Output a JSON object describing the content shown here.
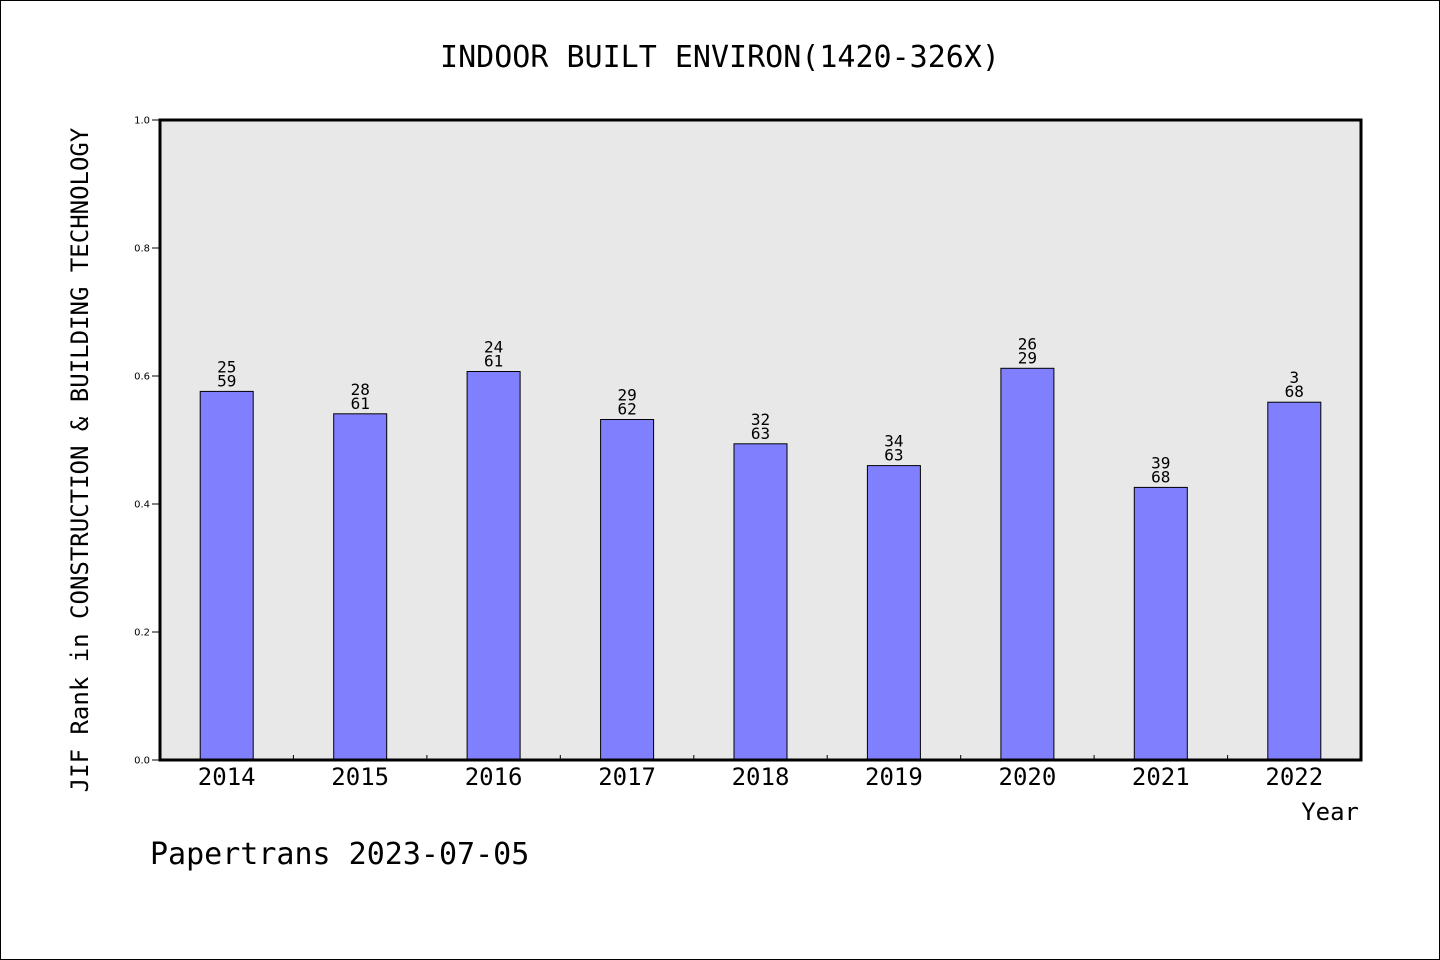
{
  "chart_data": {
    "type": "bar",
    "title": "INDOOR BUILT ENVIRON(1420-326X)",
    "xlabel": "Year",
    "ylabel": "JIF Rank in CONSTRUCTION & BUILDING TECHNOLOGY",
    "ylim": [
      0.0,
      1.0
    ],
    "yticks": [
      "0.0",
      "0.2",
      "0.4",
      "0.6",
      "0.8",
      "1.0"
    ],
    "grid": false,
    "categories": [
      "2014",
      "2015",
      "2016",
      "2017",
      "2018",
      "2019",
      "2020",
      "2021",
      "2022"
    ],
    "values": [
      0.576,
      0.541,
      0.607,
      0.532,
      0.494,
      0.46,
      0.612,
      0.426,
      0.559
    ],
    "labels_top": [
      "25",
      "28",
      "24",
      "29",
      "32",
      "34",
      "26",
      "39",
      "3"
    ],
    "labels_bottom": [
      "59",
      "61",
      "61",
      "62",
      "63",
      "63",
      "29",
      "68",
      "68"
    ],
    "colors": {
      "bar": "#8080ff",
      "plot_bg": "#e8e8e8"
    }
  },
  "footer": "Papertrans 2023-07-05"
}
